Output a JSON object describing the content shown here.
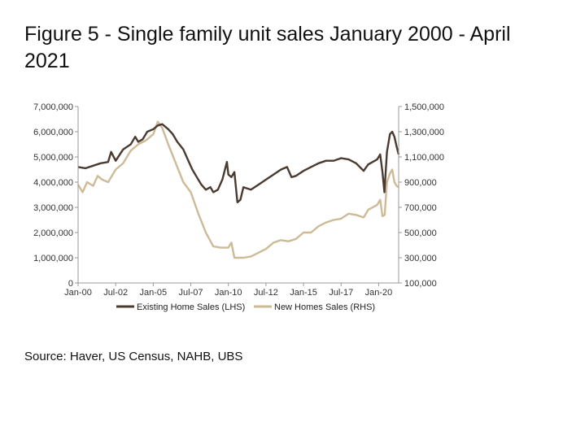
{
  "title": "Figure 5 - Single family unit sales January 2000 - April 2021",
  "source": "Source: Haver, US Census, NAHB, UBS",
  "colors": {
    "existing": "#4a3a30",
    "new": "#cdbb98",
    "axis": "#999999"
  },
  "chart_data": {
    "type": "line",
    "x_range": [
      2000.0,
      2021.33
    ],
    "x_ticks": [
      {
        "x": 2000.0,
        "label": "Jan-00"
      },
      {
        "x": 2002.5,
        "label": "Jul-02"
      },
      {
        "x": 2005.0,
        "label": "Jan-05"
      },
      {
        "x": 2007.5,
        "label": "Jul-07"
      },
      {
        "x": 2010.0,
        "label": "Jan-10"
      },
      {
        "x": 2012.5,
        "label": "Jul-12"
      },
      {
        "x": 2015.0,
        "label": "Jan-15"
      },
      {
        "x": 2017.5,
        "label": "Jul-17"
      },
      {
        "x": 2020.0,
        "label": "Jan-20"
      }
    ],
    "y_left": {
      "range": [
        0,
        7000000
      ],
      "ticks": [
        {
          "v": 0,
          "label": "0"
        },
        {
          "v": 1000000,
          "label": "1,000,000"
        },
        {
          "v": 2000000,
          "label": "2,000,000"
        },
        {
          "v": 3000000,
          "label": "3,000,000"
        },
        {
          "v": 4000000,
          "label": "4,000,000"
        },
        {
          "v": 5000000,
          "label": "5,000,000"
        },
        {
          "v": 6000000,
          "label": "6,000,000"
        },
        {
          "v": 7000000,
          "label": "7,000,000"
        }
      ]
    },
    "y_right": {
      "range": [
        100000,
        1500000
      ],
      "ticks": [
        {
          "v": 100000,
          "label": "100,000"
        },
        {
          "v": 300000,
          "label": "300,000"
        },
        {
          "v": 500000,
          "label": "500,000"
        },
        {
          "v": 700000,
          "label": "700,000"
        },
        {
          "v": 900000,
          "label": "900,000"
        },
        {
          "v": 1100000,
          "label": "1,100,000"
        },
        {
          "v": 1300000,
          "label": "1,300,000"
        },
        {
          "v": 1500000,
          "label": "1,500,000"
        }
      ]
    },
    "legend_position": "bottom",
    "series": [
      {
        "name": "Existing Home Sales (LHS)",
        "axis": "left",
        "points": [
          [
            2000.0,
            4600000
          ],
          [
            2000.5,
            4550000
          ],
          [
            2001.0,
            4650000
          ],
          [
            2001.5,
            4750000
          ],
          [
            2002.0,
            4800000
          ],
          [
            2002.2,
            5200000
          ],
          [
            2002.5,
            4850000
          ],
          [
            2003.0,
            5300000
          ],
          [
            2003.5,
            5500000
          ],
          [
            2003.8,
            5800000
          ],
          [
            2004.0,
            5600000
          ],
          [
            2004.3,
            5700000
          ],
          [
            2004.6,
            6000000
          ],
          [
            2005.0,
            6100000
          ],
          [
            2005.3,
            6250000
          ],
          [
            2005.6,
            6300000
          ],
          [
            2005.8,
            6200000
          ],
          [
            2006.0,
            6100000
          ],
          [
            2006.3,
            5900000
          ],
          [
            2006.6,
            5600000
          ],
          [
            2007.0,
            5300000
          ],
          [
            2007.3,
            4900000
          ],
          [
            2007.6,
            4500000
          ],
          [
            2007.9,
            4200000
          ],
          [
            2008.2,
            3900000
          ],
          [
            2008.5,
            3700000
          ],
          [
            2008.8,
            3800000
          ],
          [
            2009.0,
            3600000
          ],
          [
            2009.3,
            3700000
          ],
          [
            2009.6,
            4100000
          ],
          [
            2009.9,
            4800000
          ],
          [
            2010.0,
            4300000
          ],
          [
            2010.2,
            4200000
          ],
          [
            2010.4,
            4400000
          ],
          [
            2010.6,
            3200000
          ],
          [
            2010.8,
            3300000
          ],
          [
            2011.0,
            3800000
          ],
          [
            2011.5,
            3700000
          ],
          [
            2012.0,
            3900000
          ],
          [
            2012.5,
            4100000
          ],
          [
            2013.0,
            4300000
          ],
          [
            2013.5,
            4500000
          ],
          [
            2013.9,
            4600000
          ],
          [
            2014.2,
            4200000
          ],
          [
            2014.5,
            4250000
          ],
          [
            2015.0,
            4450000
          ],
          [
            2015.5,
            4600000
          ],
          [
            2016.0,
            4750000
          ],
          [
            2016.5,
            4850000
          ],
          [
            2017.0,
            4850000
          ],
          [
            2017.5,
            4950000
          ],
          [
            2018.0,
            4900000
          ],
          [
            2018.5,
            4750000
          ],
          [
            2019.0,
            4450000
          ],
          [
            2019.3,
            4700000
          ],
          [
            2019.6,
            4800000
          ],
          [
            2019.9,
            4900000
          ],
          [
            2020.1,
            5100000
          ],
          [
            2020.25,
            4400000
          ],
          [
            2020.38,
            3600000
          ],
          [
            2020.55,
            5200000
          ],
          [
            2020.75,
            5900000
          ],
          [
            2020.9,
            6000000
          ],
          [
            2021.05,
            5800000
          ],
          [
            2021.2,
            5400000
          ],
          [
            2021.33,
            5100000
          ]
        ]
      },
      {
        "name": "New Homes Sales (RHS)",
        "axis": "right",
        "points": [
          [
            2000.0,
            880000
          ],
          [
            2000.3,
            820000
          ],
          [
            2000.6,
            900000
          ],
          [
            2001.0,
            870000
          ],
          [
            2001.3,
            950000
          ],
          [
            2001.6,
            920000
          ],
          [
            2002.0,
            900000
          ],
          [
            2002.5,
            1000000
          ],
          [
            2003.0,
            1050000
          ],
          [
            2003.5,
            1150000
          ],
          [
            2004.0,
            1200000
          ],
          [
            2004.5,
            1230000
          ],
          [
            2005.0,
            1280000
          ],
          [
            2005.3,
            1380000
          ],
          [
            2005.6,
            1330000
          ],
          [
            2006.0,
            1200000
          ],
          [
            2006.5,
            1050000
          ],
          [
            2007.0,
            900000
          ],
          [
            2007.5,
            820000
          ],
          [
            2008.0,
            650000
          ],
          [
            2008.5,
            500000
          ],
          [
            2009.0,
            390000
          ],
          [
            2009.5,
            380000
          ],
          [
            2010.0,
            380000
          ],
          [
            2010.2,
            420000
          ],
          [
            2010.4,
            300000
          ],
          [
            2010.8,
            300000
          ],
          [
            2011.0,
            300000
          ],
          [
            2011.5,
            310000
          ],
          [
            2012.0,
            340000
          ],
          [
            2012.5,
            370000
          ],
          [
            2013.0,
            420000
          ],
          [
            2013.5,
            440000
          ],
          [
            2014.0,
            430000
          ],
          [
            2014.5,
            450000
          ],
          [
            2015.0,
            500000
          ],
          [
            2015.5,
            500000
          ],
          [
            2016.0,
            550000
          ],
          [
            2016.5,
            580000
          ],
          [
            2017.0,
            600000
          ],
          [
            2017.5,
            610000
          ],
          [
            2018.0,
            650000
          ],
          [
            2018.5,
            640000
          ],
          [
            2019.0,
            620000
          ],
          [
            2019.3,
            680000
          ],
          [
            2019.6,
            700000
          ],
          [
            2019.9,
            720000
          ],
          [
            2020.1,
            760000
          ],
          [
            2020.25,
            630000
          ],
          [
            2020.4,
            640000
          ],
          [
            2020.55,
            900000
          ],
          [
            2020.75,
            970000
          ],
          [
            2020.9,
            1000000
          ],
          [
            2021.05,
            900000
          ],
          [
            2021.2,
            870000
          ],
          [
            2021.33,
            860000
          ]
        ]
      }
    ]
  }
}
